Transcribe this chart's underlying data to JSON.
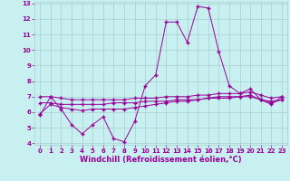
{
  "xlabel": "Windchill (Refroidissement éolien,°C)",
  "bg_color": "#c8f0f0",
  "grid_color": "#a8cece",
  "line_color": "#990099",
  "x_hours": [
    0,
    1,
    2,
    3,
    4,
    5,
    6,
    7,
    8,
    9,
    10,
    11,
    12,
    13,
    14,
    15,
    16,
    17,
    18,
    19,
    20,
    21,
    22,
    23
  ],
  "line1": [
    5.8,
    7.0,
    6.2,
    5.2,
    4.6,
    5.2,
    5.7,
    4.3,
    4.1,
    5.4,
    7.7,
    8.4,
    11.8,
    11.8,
    10.5,
    12.8,
    12.7,
    9.9,
    7.7,
    7.2,
    7.5,
    6.8,
    6.5,
    7.0
  ],
  "line2": [
    7.0,
    7.0,
    6.9,
    6.8,
    6.8,
    6.8,
    6.8,
    6.8,
    6.8,
    6.9,
    6.9,
    6.9,
    7.0,
    7.0,
    7.0,
    7.1,
    7.1,
    7.2,
    7.2,
    7.2,
    7.3,
    7.1,
    6.9,
    7.0
  ],
  "line3": [
    6.6,
    6.6,
    6.5,
    6.5,
    6.5,
    6.5,
    6.5,
    6.6,
    6.6,
    6.6,
    6.7,
    6.7,
    6.7,
    6.8,
    6.8,
    6.8,
    6.9,
    6.9,
    6.9,
    7.0,
    7.0,
    6.8,
    6.7,
    6.8
  ],
  "line4": [
    5.9,
    6.5,
    6.3,
    6.2,
    6.1,
    6.2,
    6.2,
    6.2,
    6.2,
    6.3,
    6.4,
    6.5,
    6.6,
    6.7,
    6.7,
    6.8,
    6.9,
    7.0,
    7.0,
    7.0,
    7.1,
    6.8,
    6.6,
    6.8
  ],
  "ylim": [
    4,
    13
  ],
  "xlim": [
    -0.5,
    23.5
  ],
  "yticks": [
    4,
    5,
    6,
    7,
    8,
    9,
    10,
    11,
    12,
    13
  ],
  "xticks": [
    0,
    1,
    2,
    3,
    4,
    5,
    6,
    7,
    8,
    9,
    10,
    11,
    12,
    13,
    14,
    15,
    16,
    17,
    18,
    19,
    20,
    21,
    22,
    23
  ],
  "tick_fontsize": 5.0,
  "xlabel_fontsize": 6.0,
  "marker": "+",
  "markersize": 2.5,
  "linewidth": 0.7
}
